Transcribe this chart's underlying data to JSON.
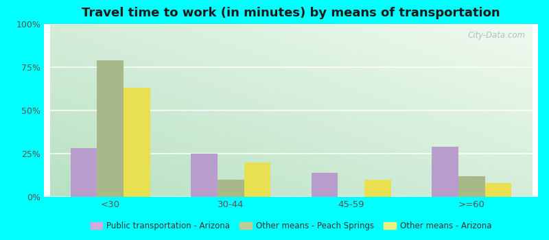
{
  "title": "Travel time to work (in minutes) by means of transportation",
  "categories": [
    "<30",
    "30-44",
    "45-59",
    ">=60"
  ],
  "series": {
    "Public transportation - Arizona": [
      28,
      25,
      14,
      29
    ],
    "Other means - Peach Springs": [
      79,
      10,
      0,
      12
    ],
    "Other means - Arizona": [
      63,
      20,
      10,
      8
    ]
  },
  "bar_colors": {
    "Public transportation - Arizona": "#b89ccc",
    "Other means - Peach Springs": "#a8b888",
    "Other means - Arizona": "#e8e050"
  },
  "legend_colors": {
    "Public transportation - Arizona": "#d4aadd",
    "Other means - Peach Springs": "#c0cc98",
    "Other means - Arizona": "#eeee80"
  },
  "outer_bg": "#00ffff",
  "ylim": [
    0,
    100
  ],
  "yticks": [
    0,
    25,
    50,
    75,
    100
  ],
  "ytick_labels": [
    "0%",
    "25%",
    "50%",
    "75%",
    "100%"
  ],
  "bar_width": 0.22,
  "title_fontsize": 13,
  "watermark": "City-Data.com",
  "bg_left_bottom": "#b8e8d8",
  "bg_right_top": "#f0f8ec"
}
